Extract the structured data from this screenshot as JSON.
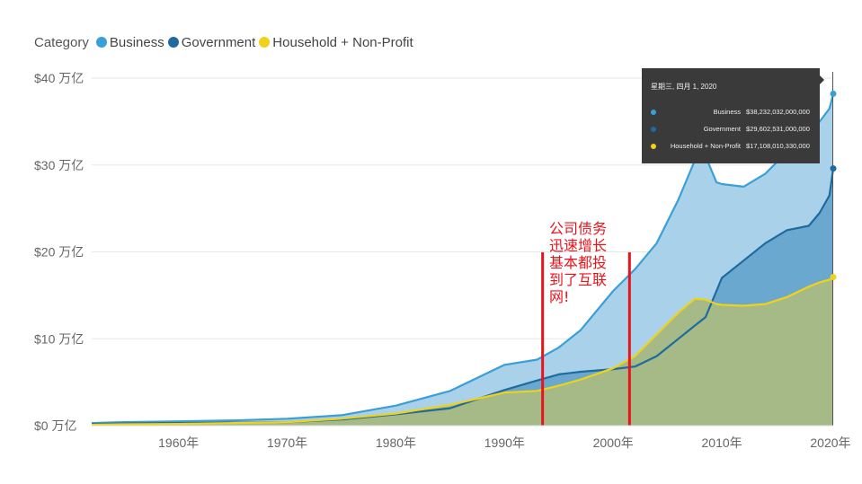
{
  "legend": {
    "title": "Category",
    "items": [
      {
        "label": "Business",
        "color": "#3a9fd8"
      },
      {
        "label": "Government",
        "color": "#1f6a9e"
      },
      {
        "label": "Household + Non-Profit",
        "color": "#f0d21a"
      }
    ]
  },
  "tooltip": {
    "date": "星期三, 四月 1, 2020",
    "rows": [
      {
        "name": "Business",
        "value": "$38,232,032,000,000",
        "color": "#3a9fd8"
      },
      {
        "name": "Government",
        "value": "$29,602,531,000,000",
        "color": "#1f6a9e"
      },
      {
        "name": "Household + Non-Profit",
        "value": "$17,108,010,330,000",
        "color": "#f0d21a"
      }
    ]
  },
  "annotation": "公司债务\n迅速增长\n基本都投\n到了互联\n网!",
  "chart_data": {
    "type": "area",
    "xlim": [
      1952,
      2020.25
    ],
    "ylim": [
      0,
      40
    ],
    "x_ticks": [
      1960,
      1970,
      1980,
      1990,
      2000,
      2010,
      2020
    ],
    "x_tick_labels": [
      "1960年",
      "1970年",
      "1980年",
      "1990年",
      "2000年",
      "2010年",
      "2020年"
    ],
    "y_ticks": [
      0,
      10,
      20,
      30,
      40
    ],
    "y_tick_labels": [
      "$0 万亿",
      "$10 万亿",
      "$20 万亿",
      "$30 万亿",
      "$40 万亿"
    ],
    "grid": true,
    "x": [
      1952,
      1955,
      1960,
      1965,
      1970,
      1975,
      1980,
      1985,
      1990,
      1993,
      1995,
      1997,
      2000,
      2002,
      2004,
      2006,
      2007.5,
      2008.5,
      2009.5,
      2010,
      2012,
      2014,
      2016,
      2018,
      2019,
      2019.9,
      2020.25
    ],
    "series": [
      {
        "name": "Business",
        "color": "#3a9fd8",
        "fill": "#a9d2ea",
        "values": [
          0.3,
          0.4,
          0.5,
          0.6,
          0.8,
          1.2,
          2.3,
          4.0,
          7.0,
          7.6,
          9.0,
          11.0,
          15.5,
          18.0,
          21.0,
          26.0,
          30.5,
          31.0,
          28.0,
          27.8,
          27.5,
          29.0,
          31.5,
          34.0,
          35.0,
          36.5,
          38.2
        ]
      },
      {
        "name": "Government",
        "color": "#1f6a9e",
        "fill": "#6aa8cf",
        "values": [
          0.2,
          0.25,
          0.3,
          0.35,
          0.4,
          0.7,
          1.3,
          2.0,
          4.1,
          5.2,
          5.9,
          6.2,
          6.5,
          6.8,
          8.0,
          10.0,
          11.5,
          12.5,
          15.5,
          17.0,
          19.0,
          21.0,
          22.5,
          23.0,
          24.5,
          26.5,
          29.6
        ]
      },
      {
        "name": "Household + Non-Profit",
        "color": "#f0d21a",
        "fill": "#a5ba86",
        "values": [
          0.1,
          0.15,
          0.2,
          0.3,
          0.4,
          0.8,
          1.4,
          2.4,
          3.8,
          4.0,
          4.6,
          5.3,
          6.6,
          8.0,
          10.5,
          13.0,
          14.6,
          14.5,
          14.0,
          13.9,
          13.8,
          14.0,
          14.8,
          16.0,
          16.5,
          16.8,
          17.1
        ]
      }
    ],
    "markers": [
      1993.5,
      2001.5
    ]
  }
}
